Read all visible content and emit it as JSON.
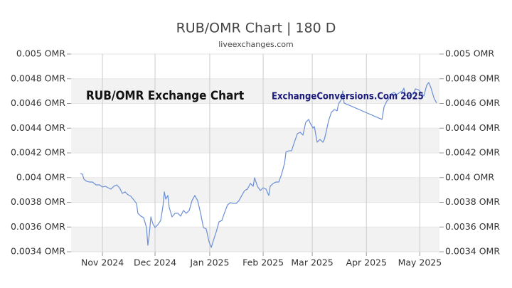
{
  "chart_data": {
    "type": "line",
    "title": "RUB/OMR Chart | 180 D",
    "subtitle": "liveexchanges.com",
    "annotations": [
      "RUB/OMR Exchange Chart",
      "ExchangeConversions.Com 2025"
    ],
    "color": "#6a8fd6",
    "x": [
      5.3,
      6.5,
      7.3,
      8.9,
      10.6,
      12.2,
      14.2,
      16.2,
      17.9,
      19.5,
      21.1,
      22.7,
      24.4,
      26.0,
      27.6,
      29.2,
      30.8,
      32.5,
      34.1,
      35.7,
      37.3,
      38.1,
      39.8,
      41.4,
      43.0,
      43.8,
      44.6,
      45.5,
      46.7,
      47.9,
      49.5,
      51.1,
      52.4,
      53.2,
      54.0,
      55.2,
      56.0,
      57.6,
      59.3,
      60.9,
      62.5,
      64.1,
      65.7,
      67.4,
      69.0,
      70.6,
      72.2,
      73.9,
      75.5,
      77.1,
      78.7,
      80.0,
      81.2,
      82.8,
      84.4,
      86.0,
      87.7,
      89.3,
      90.9,
      92.5,
      94.2,
      95.8,
      97.4,
      99.0,
      100.6,
      102.3,
      103.9,
      104.7,
      106.3,
      108.0,
      109.6,
      111.2,
      112.8,
      113.6,
      115.3,
      116.9,
      118.5,
      120.1,
      121.8,
      122.6,
      124.2,
      125.8,
      127.4,
      129.1,
      130.7,
      132.3,
      133.9,
      135.6,
      136.4,
      138.0,
      138.8,
      140.4,
      142.0,
      143.7,
      144.5,
      145.3,
      146.9,
      148.5,
      150.2,
      151.8,
      152.6,
      154.2,
      155.0,
      155.8,
      177.4,
      178.6,
      180.2,
      181.0,
      182.6,
      184.3,
      185.9,
      187.5,
      189.1,
      189.9,
      190.7,
      192.4,
      194.0,
      195.6,
      196.4,
      198.1,
      199.7,
      201.3,
      202.9,
      204.1,
      205.4,
      207.1,
      208.6
    ],
    "values": [
      0.004033,
      0.004027,
      0.003987,
      0.00397,
      0.003964,
      0.003964,
      0.003941,
      0.003941,
      0.003924,
      0.00393,
      0.003918,
      0.003907,
      0.00393,
      0.003941,
      0.003918,
      0.003872,
      0.003884,
      0.003861,
      0.003849,
      0.00382,
      0.003791,
      0.003711,
      0.003688,
      0.003676,
      0.003596,
      0.003452,
      0.003538,
      0.003682,
      0.003625,
      0.003596,
      0.003619,
      0.003653,
      0.003768,
      0.003884,
      0.003826,
      0.003855,
      0.003757,
      0.003682,
      0.003711,
      0.003711,
      0.003688,
      0.003734,
      0.003711,
      0.003734,
      0.003814,
      0.003855,
      0.003814,
      0.003711,
      0.003596,
      0.003584,
      0.003481,
      0.003435,
      0.003492,
      0.003561,
      0.003642,
      0.003653,
      0.003722,
      0.00378,
      0.003797,
      0.003791,
      0.003791,
      0.003814,
      0.003855,
      0.003895,
      0.003907,
      0.003953,
      0.00393,
      0.003999,
      0.00393,
      0.003895,
      0.003918,
      0.003907,
      0.003855,
      0.00393,
      0.003953,
      0.003964,
      0.003964,
      0.004027,
      0.004114,
      0.004206,
      0.004217,
      0.004217,
      0.004286,
      0.004355,
      0.004367,
      0.004344,
      0.004448,
      0.004471,
      0.004442,
      0.004401,
      0.004413,
      0.004286,
      0.004309,
      0.004286,
      0.004309,
      0.004355,
      0.004459,
      0.004528,
      0.004551,
      0.00454,
      0.004597,
      0.004632,
      0.004701,
      0.004603,
      0.004471,
      0.004574,
      0.00462,
      0.004632,
      0.004678,
      0.004689,
      0.004672,
      0.004689,
      0.004701,
      0.004724,
      0.004666,
      0.00466,
      0.004666,
      0.004678,
      0.004718,
      0.004712,
      0.004689,
      0.00466,
      0.004747,
      0.00477,
      0.004724,
      0.004643,
      0.004603
    ],
    "xlim": [
      0,
      210.2
    ],
    "xticks": [
      {
        "value": 17.9,
        "label": "Nov 2024"
      },
      {
        "value": 47.9,
        "label": "Dec 2024"
      },
      {
        "value": 79.1,
        "label": "Jan 2025"
      },
      {
        "value": 109.6,
        "label": "Feb 2025"
      },
      {
        "value": 137.6,
        "label": "Mar 2025"
      },
      {
        "value": 168.5,
        "label": "Apr 2025"
      },
      {
        "value": 199.0,
        "label": "May 2025"
      }
    ],
    "ylim": [
      0.0034,
      0.005
    ],
    "yticks": [
      {
        "value": 0.005,
        "label": "0.005 OMR"
      },
      {
        "value": 0.0048,
        "label": "0.0048 OMR"
      },
      {
        "value": 0.0046,
        "label": "0.0046 OMR"
      },
      {
        "value": 0.0044,
        "label": "0.0044 OMR"
      },
      {
        "value": 0.0042,
        "label": "0.0042 OMR"
      },
      {
        "value": 0.004,
        "label": "0.004 OMR"
      },
      {
        "value": 0.0038,
        "label": "0.0038 OMR"
      },
      {
        "value": 0.0036,
        "label": "0.0036 OMR"
      },
      {
        "value": 0.0034,
        "label": "0.0034 OMR"
      }
    ],
    "y2lim": [
      0.0034,
      0.005
    ],
    "y2ticks": [
      {
        "value": 0.005,
        "label": "0.005 OMR"
      },
      {
        "value": 0.0048,
        "label": "0.0048 OMR"
      },
      {
        "value": 0.0046,
        "label": "0.0046 OMR"
      },
      {
        "value": 0.0044,
        "label": "0.0044 OMR"
      },
      {
        "value": 0.0042,
        "label": "0.0042 OMR"
      },
      {
        "value": 0.004,
        "label": "0.004 OMR"
      },
      {
        "value": 0.0038,
        "label": "0.0038 OMR"
      },
      {
        "value": 0.0036,
        "label": "0.0036 OMR"
      },
      {
        "value": 0.0034,
        "label": "0.0034 OMR"
      }
    ],
    "grid": true
  }
}
